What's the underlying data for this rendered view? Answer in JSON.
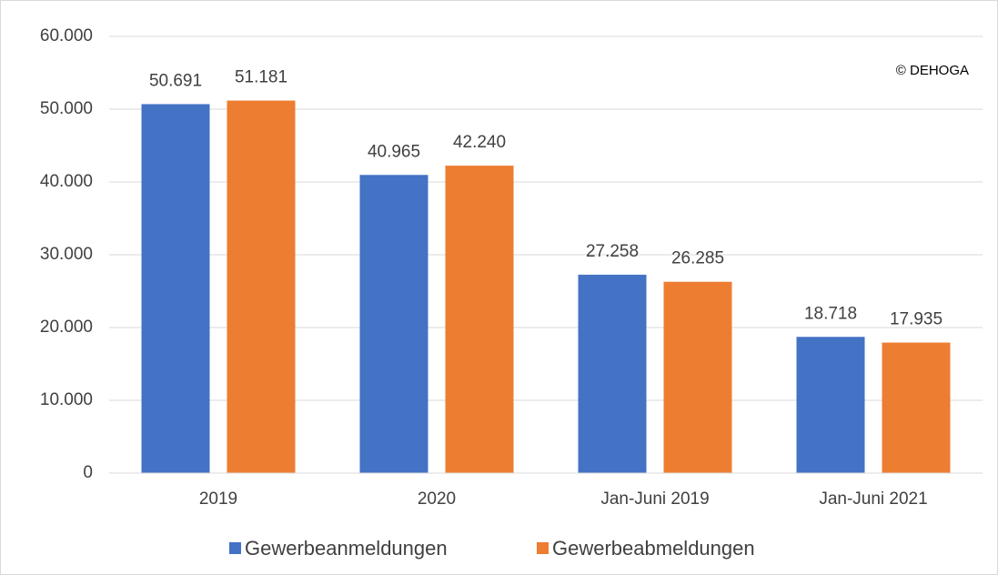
{
  "chart_data": {
    "type": "bar",
    "annotation": "© DEHOGA",
    "categories": [
      "2019",
      "2020",
      "Jan-Juni 2019",
      "Jan-Juni 2021"
    ],
    "series": [
      {
        "name": "Gewerbeanmeldungen",
        "color": "#4472c4",
        "values": [
          50691,
          40965,
          27258,
          18718
        ],
        "value_labels": [
          "50.691",
          "40.965",
          "27.258",
          "18.718"
        ]
      },
      {
        "name": "Gewerbeabmeldungen",
        "color": "#ed7d31",
        "values": [
          51181,
          42240,
          26285,
          17935
        ],
        "value_labels": [
          "51.181",
          "42.240",
          "26.285",
          "17.935"
        ]
      }
    ],
    "ylim": [
      0,
      60000
    ],
    "yticks": [
      0,
      {
        "value": 10000,
        "label": "10.000"
      },
      {
        "value": 20000,
        "label": "20.000"
      },
      {
        "value": 30000,
        "label": "30.000"
      },
      {
        "value": 40000,
        "label": "40.000"
      },
      {
        "value": 50000,
        "label": "50.000"
      },
      {
        "value": 60000,
        "label": "60.000"
      }
    ],
    "grid": true
  }
}
